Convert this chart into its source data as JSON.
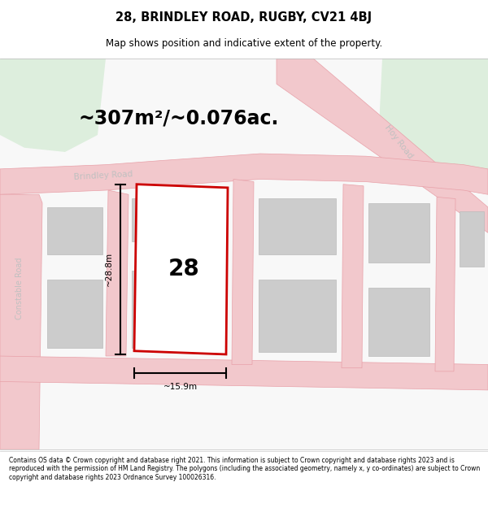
{
  "title_line1": "28, BRINDLEY ROAD, RUGBY, CV21 4BJ",
  "title_line2": "Map shows position and indicative extent of the property.",
  "area_text": "~307m²/~0.076ac.",
  "property_number": "28",
  "dim_height": "~28.8m",
  "dim_width": "~15.9m",
  "footer_text": "Contains OS data © Crown copyright and database right 2021. This information is subject to Crown copyright and database rights 2023 and is reproduced with the permission of HM Land Registry. The polygons (including the associated geometry, namely x, y co-ordinates) are subject to Crown copyright and database rights 2023 Ordnance Survey 100026316.",
  "map_bg": "#f5f5f5",
  "road_fill": "#f2c8cc",
  "road_edge": "#e8a0a8",
  "plot_color": "#cc0000",
  "building_fill": "#cccccc",
  "building_edge": "#bbbbbb",
  "green_color": "#ddeedd",
  "road_label_color": "#c0c0c0",
  "dim_color": "#000000"
}
